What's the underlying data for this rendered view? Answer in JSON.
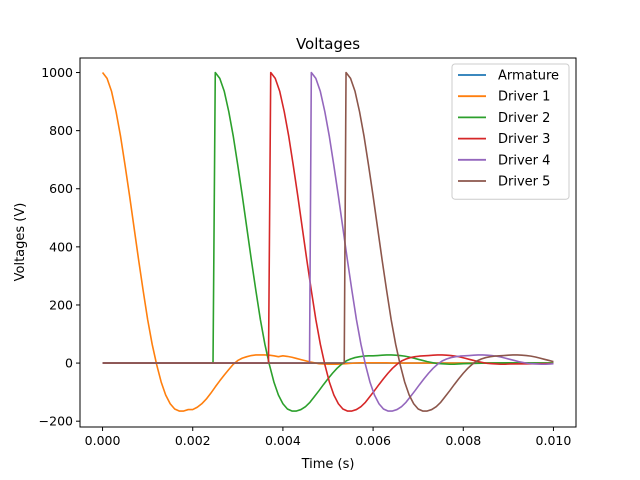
{
  "chart_data": {
    "type": "line",
    "title": "Voltages",
    "xlabel": "Time (s)",
    "ylabel": "Voltages (V)",
    "xlim": [
      -0.0005,
      0.0105
    ],
    "ylim": [
      -220,
      1050
    ],
    "xticks": [
      0.0,
      0.002,
      0.004,
      0.006,
      0.008,
      0.01
    ],
    "xtick_labels": [
      "0.000",
      "0.002",
      "0.004",
      "0.006",
      "0.008",
      "0.010"
    ],
    "yticks": [
      -200,
      0,
      200,
      400,
      600,
      800,
      1000
    ],
    "ytick_labels": [
      "−200",
      "0",
      "200",
      "400",
      "600",
      "800",
      "1000"
    ],
    "grid": false,
    "legend_position": "top-right",
    "series": [
      {
        "name": "Armature",
        "color": "#1f77b4",
        "x": [
          0.0,
          0.01
        ],
        "y": [
          0,
          0
        ]
      },
      {
        "name": "Driver 1",
        "color": "#ff7f0e",
        "x": [
          0.0,
          0.0001,
          0.0002,
          0.0003,
          0.0004,
          0.0005,
          0.0006,
          0.0007,
          0.0008,
          0.0009,
          0.001,
          0.0011,
          0.0012,
          0.0013,
          0.0014,
          0.0015,
          0.0016,
          0.0017,
          0.0018,
          0.0019,
          0.002,
          0.0021,
          0.0022,
          0.0023,
          0.0024,
          0.0025,
          0.0026,
          0.0027,
          0.0028,
          0.0029,
          0.003,
          0.0031,
          0.0032,
          0.0033,
          0.0034,
          0.0035,
          0.0036,
          0.0037,
          0.0038,
          0.0039,
          0.004,
          0.0041,
          0.0042,
          0.0043,
          0.0044,
          0.0045,
          0.0046,
          0.0047,
          0.0048,
          0.0049,
          0.005,
          0.0051,
          0.0052,
          0.0053,
          0.0054,
          0.0055,
          0.0056,
          0.0057,
          0.0058,
          0.0059,
          0.006,
          0.0061,
          0.0062,
          0.0063,
          0.0064,
          0.0065,
          0.0066,
          0.0067,
          0.0068,
          0.0069,
          0.007,
          0.008,
          0.009,
          0.01
        ],
        "y": [
          1000,
          980,
          935,
          865,
          780,
          680,
          575,
          465,
          355,
          250,
          150,
          65,
          -5,
          -65,
          -110,
          -140,
          -158,
          -165,
          -165,
          -160,
          -160,
          -152,
          -140,
          -124,
          -104,
          -82,
          -61,
          -41,
          -22,
          -4,
          9,
          17,
          22,
          26,
          28,
          28,
          28,
          27,
          25,
          22,
          25,
          23,
          20,
          16,
          12,
          8,
          4,
          1,
          -2,
          -3,
          -4,
          -4,
          -4,
          -3,
          -2,
          -1,
          0,
          1,
          1,
          1,
          1,
          1,
          1,
          1,
          0,
          0,
          0,
          0,
          0,
          0,
          0,
          0,
          0,
          0
        ]
      },
      {
        "name": "Driver 2",
        "color": "#2ca02c",
        "x": [
          0.0,
          0.00245,
          0.0025,
          0.0026,
          0.0027,
          0.0028,
          0.0029,
          0.003,
          0.0031,
          0.0032,
          0.0033,
          0.0034,
          0.0035,
          0.0036,
          0.0037,
          0.0038,
          0.0039,
          0.004,
          0.0041,
          0.0042,
          0.0043,
          0.0044,
          0.0045,
          0.0046,
          0.0047,
          0.0048,
          0.0049,
          0.005,
          0.0051,
          0.0052,
          0.0053,
          0.0054,
          0.0055,
          0.0056,
          0.0057,
          0.0058,
          0.0059,
          0.006,
          0.0061,
          0.0062,
          0.0063,
          0.0064,
          0.0065,
          0.0066,
          0.0067,
          0.0068,
          0.0069,
          0.007,
          0.0071,
          0.0072,
          0.0073,
          0.0074,
          0.0075,
          0.0076,
          0.0077,
          0.0078,
          0.0079,
          0.008,
          0.0085,
          0.009,
          0.01
        ],
        "y": [
          0,
          0,
          1000,
          980,
          935,
          865,
          780,
          680,
          575,
          465,
          355,
          250,
          150,
          65,
          -5,
          -65,
          -110,
          -140,
          -158,
          -165,
          -165,
          -160,
          -150,
          -135,
          -115,
          -95,
          -74,
          -54,
          -35,
          -18,
          -4,
          7,
          14,
          19,
          22,
          24,
          25,
          25,
          26,
          27,
          28,
          28,
          27,
          26,
          24,
          21,
          17,
          13,
          9,
          5,
          2,
          -1,
          -2,
          -3,
          -4,
          -4,
          -3,
          -2,
          0,
          1,
          0
        ]
      },
      {
        "name": "Driver 3",
        "color": "#d62728",
        "x": [
          0.0,
          0.00368,
          0.00373,
          0.00383,
          0.00393,
          0.00403,
          0.00413,
          0.00423,
          0.00433,
          0.00443,
          0.00453,
          0.00463,
          0.00473,
          0.00483,
          0.00493,
          0.00503,
          0.00513,
          0.00523,
          0.00533,
          0.00543,
          0.00553,
          0.00563,
          0.00573,
          0.00583,
          0.00593,
          0.00603,
          0.00613,
          0.00623,
          0.00633,
          0.00643,
          0.00653,
          0.00663,
          0.00673,
          0.00683,
          0.00693,
          0.00703,
          0.00713,
          0.00723,
          0.00733,
          0.00743,
          0.00753,
          0.00763,
          0.00773,
          0.00783,
          0.00793,
          0.00803,
          0.00813,
          0.00823,
          0.00833,
          0.00843,
          0.00853,
          0.00863,
          0.00873,
          0.00883,
          0.00893,
          0.00903,
          0.01
        ],
        "y": [
          0,
          0,
          1000,
          980,
          935,
          865,
          780,
          680,
          575,
          465,
          355,
          250,
          150,
          65,
          -5,
          -65,
          -110,
          -140,
          -158,
          -165,
          -165,
          -160,
          -150,
          -135,
          -115,
          -95,
          -74,
          -54,
          -35,
          -18,
          -4,
          7,
          14,
          19,
          22,
          24,
          25,
          26,
          27,
          28,
          28,
          27,
          26,
          24,
          21,
          17,
          13,
          9,
          5,
          2,
          -1,
          -2,
          -3,
          -4,
          -4,
          -3,
          -2
        ]
      },
      {
        "name": "Driver 4",
        "color": "#9467bd",
        "x": [
          0.0,
          0.00459,
          0.00463,
          0.00473,
          0.00483,
          0.00493,
          0.00503,
          0.00513,
          0.00523,
          0.00533,
          0.00543,
          0.00553,
          0.00563,
          0.00573,
          0.00583,
          0.00593,
          0.00603,
          0.00613,
          0.00623,
          0.00633,
          0.00643,
          0.00653,
          0.00663,
          0.00673,
          0.00683,
          0.00693,
          0.00703,
          0.00713,
          0.00723,
          0.00733,
          0.00743,
          0.00753,
          0.00763,
          0.00773,
          0.00783,
          0.00793,
          0.00803,
          0.00813,
          0.00823,
          0.00833,
          0.00843,
          0.00853,
          0.00863,
          0.00873,
          0.00883,
          0.00893,
          0.00903,
          0.00913,
          0.00923,
          0.00933,
          0.00943,
          0.00953,
          0.00963,
          0.00973,
          0.00983,
          0.00993,
          0.01
        ],
        "y": [
          0,
          0,
          1000,
          980,
          935,
          865,
          780,
          680,
          575,
          465,
          355,
          250,
          150,
          65,
          -5,
          -65,
          -110,
          -140,
          -158,
          -165,
          -165,
          -160,
          -150,
          -135,
          -115,
          -95,
          -74,
          -54,
          -35,
          -18,
          -4,
          7,
          14,
          19,
          22,
          24,
          25,
          26,
          27,
          28,
          28,
          27,
          26,
          24,
          21,
          17,
          13,
          9,
          5,
          2,
          -1,
          -2,
          -3,
          -4,
          -4,
          -3,
          -2
        ]
      },
      {
        "name": "Driver 5",
        "color": "#8c564b",
        "x": [
          0.0,
          0.00536,
          0.0054,
          0.0055,
          0.0056,
          0.0057,
          0.0058,
          0.0059,
          0.006,
          0.0061,
          0.0062,
          0.0063,
          0.0064,
          0.0065,
          0.0066,
          0.0067,
          0.0068,
          0.0069,
          0.007,
          0.0071,
          0.0072,
          0.0073,
          0.0074,
          0.0075,
          0.0076,
          0.0077,
          0.0078,
          0.0079,
          0.008,
          0.0081,
          0.0082,
          0.0083,
          0.0084,
          0.0085,
          0.0086,
          0.0087,
          0.0088,
          0.0089,
          0.009,
          0.0091,
          0.0092,
          0.0093,
          0.0094,
          0.0095,
          0.0096,
          0.0097,
          0.0098,
          0.0099,
          0.01
        ],
        "y": [
          0,
          0,
          1000,
          980,
          935,
          865,
          780,
          680,
          575,
          465,
          355,
          250,
          150,
          65,
          -5,
          -65,
          -110,
          -140,
          -158,
          -165,
          -165,
          -160,
          -150,
          -135,
          -115,
          -95,
          -74,
          -54,
          -35,
          -18,
          -4,
          7,
          14,
          19,
          22,
          24,
          25,
          26,
          27,
          28,
          28,
          27,
          26,
          24,
          21,
          17,
          13,
          9,
          5
        ]
      }
    ]
  }
}
